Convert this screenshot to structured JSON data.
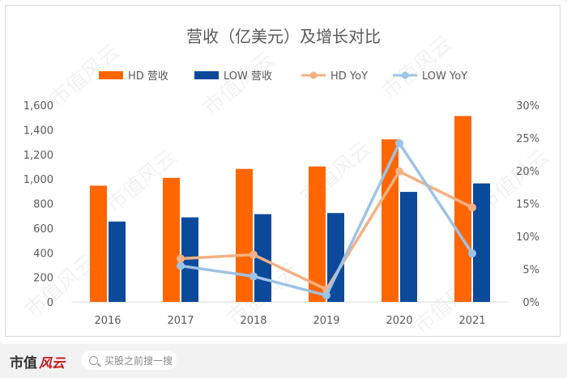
{
  "footer": {
    "brand": "市值",
    "brand_mark": "风云",
    "search_placeholder": "买股之前搜一搜"
  },
  "watermark": "市值风云",
  "colors": {
    "hd": "#ff6600",
    "low": "#0b4a9a",
    "hd_yoy": "#f4b183",
    "low_yoy": "#9dc3e6"
  },
  "chart_data": {
    "type": "bar",
    "title": "营收（亿美元）及增长对比",
    "categories": [
      "2016",
      "2017",
      "2018",
      "2019",
      "2020",
      "2021"
    ],
    "series": [
      {
        "name": "HD 营收",
        "type": "bar",
        "axis": "left",
        "values": [
          946,
          1009,
          1082,
          1102,
          1322,
          1512
        ]
      },
      {
        "name": "LOW 营收",
        "type": "bar",
        "axis": "left",
        "values": [
          654,
          688,
          714,
          723,
          895,
          964
        ]
      }
    ],
    "line_series": [
      {
        "name": "HD YoY",
        "type": "line",
        "axis": "right",
        "values": [
          null,
          6.6,
          7.2,
          1.9,
          19.9,
          14.4
        ]
      },
      {
        "name": "LOW YoY",
        "type": "line",
        "axis": "right",
        "values": [
          null,
          5.5,
          3.9,
          1.0,
          24.2,
          7.4
        ]
      }
    ],
    "y_left": {
      "min": 0,
      "max": 1600,
      "step": 200,
      "ticks": [
        "0",
        "200",
        "400",
        "600",
        "800",
        "1,000",
        "1,200",
        "1,400",
        "1,600"
      ]
    },
    "y_right": {
      "min": 0,
      "max": 30,
      "step": 5,
      "ticks": [
        "0%",
        "5%",
        "10%",
        "15%",
        "20%",
        "25%",
        "30%"
      ]
    },
    "legend_position": "top",
    "grid": false
  }
}
